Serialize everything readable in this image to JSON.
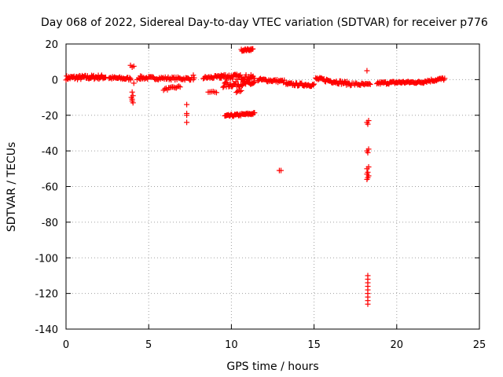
{
  "chart_data": {
    "type": "scatter",
    "title": "Day 068 of 2022, Sidereal Day-to-day VTEC variation (SDTVAR) for receiver p776",
    "xlabel": "GPS time / hours",
    "ylabel": "SDTVAR / TECUs",
    "xlim": [
      0,
      25
    ],
    "ylim": [
      -140,
      20
    ],
    "xticks": [
      0,
      5,
      10,
      15,
      20,
      25
    ],
    "yticks": [
      20,
      0,
      -20,
      -40,
      -60,
      -80,
      -100,
      -120,
      -140
    ],
    "grid": true,
    "marker": "+",
    "color": "#ff0000",
    "segments": [
      {
        "x0": 0.0,
        "x1": 2.4,
        "y0": 1.0,
        "y1": 1.5,
        "n": 60,
        "spread": 1.2
      },
      {
        "x0": 2.6,
        "x1": 3.9,
        "y0": 1.0,
        "y1": 0.5,
        "n": 25,
        "spread": 0.8
      },
      {
        "x0": 4.4,
        "x1": 7.6,
        "y0": 1.0,
        "y1": 0.5,
        "n": 55,
        "spread": 0.8
      },
      {
        "x0": 5.9,
        "x1": 6.9,
        "y0": -5.5,
        "y1": -4.0,
        "n": 14,
        "spread": 0.6
      },
      {
        "x0": 8.3,
        "x1": 9.4,
        "y0": 1.0,
        "y1": 1.5,
        "n": 20,
        "spread": 0.8
      },
      {
        "x0": 8.6,
        "x1": 9.1,
        "y0": -7.0,
        "y1": -7.0,
        "n": 6,
        "spread": 0.4
      },
      {
        "x0": 9.3,
        "x1": 11.4,
        "y0": 2.0,
        "y1": 1.0,
        "n": 50,
        "spread": 1.5
      },
      {
        "x0": 9.5,
        "x1": 11.4,
        "y0": -3.0,
        "y1": -2.0,
        "n": 40,
        "spread": 1.5
      },
      {
        "x0": 9.6,
        "x1": 11.4,
        "y0": -20.5,
        "y1": -19.0,
        "n": 40,
        "spread": 0.6
      },
      {
        "x0": 10.3,
        "x1": 10.6,
        "y0": -7.0,
        "y1": -6.0,
        "n": 5,
        "spread": 0.5
      },
      {
        "x0": 10.6,
        "x1": 11.3,
        "y0": 16.5,
        "y1": 17.0,
        "n": 18,
        "spread": 0.5
      },
      {
        "x0": 11.6,
        "x1": 13.2,
        "y0": 0.0,
        "y1": -1.0,
        "n": 30,
        "spread": 0.8
      },
      {
        "x0": 13.3,
        "x1": 15.0,
        "y0": -2.5,
        "y1": -3.0,
        "n": 35,
        "spread": 0.8
      },
      {
        "x0": 15.1,
        "x1": 17.3,
        "y0": 0.5,
        "y1": -2.5,
        "n": 45,
        "spread": 1.0
      },
      {
        "x0": 17.4,
        "x1": 18.4,
        "y0": -2.5,
        "y1": -3.0,
        "n": 18,
        "spread": 0.8
      },
      {
        "x0": 18.8,
        "x1": 20.3,
        "y0": -2.0,
        "y1": -1.5,
        "n": 30,
        "spread": 0.7
      },
      {
        "x0": 20.3,
        "x1": 21.6,
        "y0": -1.5,
        "y1": -1.5,
        "n": 25,
        "spread": 0.6
      },
      {
        "x0": 21.6,
        "x1": 22.9,
        "y0": -1.0,
        "y1": 0.5,
        "n": 25,
        "spread": 0.8
      }
    ],
    "points": [
      [
        3.9,
        8
      ],
      [
        4.0,
        7
      ],
      [
        4.1,
        7.5
      ],
      [
        4.0,
        -7
      ],
      [
        4.05,
        -9
      ],
      [
        3.95,
        -10
      ],
      [
        4.0,
        -12
      ],
      [
        4.05,
        -13
      ],
      [
        4.0,
        -11
      ],
      [
        3.9,
        0.5
      ],
      [
        4.1,
        -2
      ],
      [
        4.3,
        0
      ],
      [
        4.5,
        2
      ],
      [
        4.6,
        1
      ],
      [
        7.3,
        -14
      ],
      [
        7.3,
        -19
      ],
      [
        7.3,
        -20
      ],
      [
        7.3,
        -24
      ],
      [
        7.7,
        2.5
      ],
      [
        7.75,
        1
      ],
      [
        7.7,
        0
      ],
      [
        12.9,
        -51
      ],
      [
        13.0,
        -51
      ],
      [
        18.2,
        5
      ],
      [
        18.2,
        -24
      ],
      [
        18.3,
        -23
      ],
      [
        18.25,
        -25
      ],
      [
        18.2,
        -40
      ],
      [
        18.3,
        -39
      ],
      [
        18.25,
        -41
      ],
      [
        18.2,
        -50
      ],
      [
        18.3,
        -49
      ],
      [
        18.25,
        -52
      ],
      [
        18.2,
        -53
      ],
      [
        18.3,
        -54
      ],
      [
        18.25,
        -55
      ],
      [
        18.2,
        -56
      ],
      [
        18.25,
        -110
      ],
      [
        18.25,
        -112
      ],
      [
        18.25,
        -114
      ],
      [
        18.25,
        -116
      ],
      [
        18.25,
        -118
      ],
      [
        18.25,
        -120
      ],
      [
        18.25,
        -122
      ],
      [
        18.25,
        -124
      ],
      [
        18.25,
        -126
      ]
    ]
  }
}
